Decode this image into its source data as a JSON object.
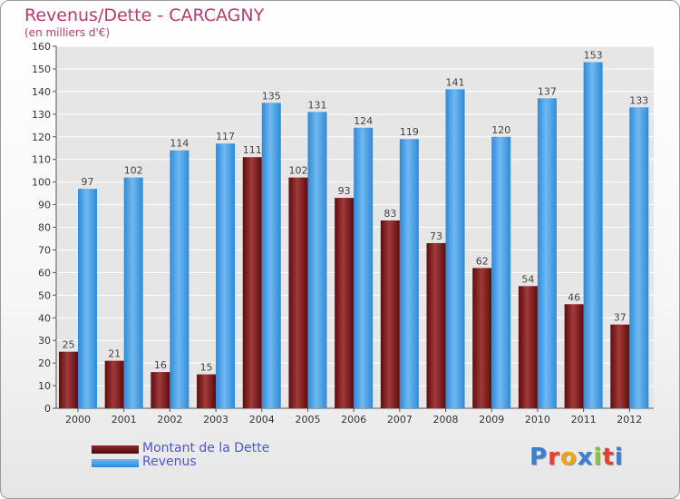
{
  "chart_data": {
    "type": "bar",
    "title": "Revenus/Dette - CARCAGNY",
    "subtitle": "(en milliers d'€)",
    "xlabel": "",
    "ylabel": "",
    "categories": [
      "2000",
      "2001",
      "2002",
      "2003",
      "2004",
      "2005",
      "2006",
      "2007",
      "2008",
      "2009",
      "2010",
      "2011",
      "2012"
    ],
    "series": [
      {
        "name": "Montant de la Dette",
        "color": "#7a1c1c",
        "values": [
          25,
          21,
          16,
          15,
          111,
          102,
          93,
          83,
          73,
          62,
          54,
          46,
          37
        ]
      },
      {
        "name": "Revenus",
        "color": "#3d9ce6",
        "values": [
          97,
          102,
          114,
          117,
          135,
          131,
          124,
          119,
          141,
          120,
          137,
          153,
          133
        ]
      }
    ],
    "ylim": [
      0,
      160
    ],
    "yticks": [
      0,
      10,
      20,
      30,
      40,
      50,
      60,
      70,
      80,
      90,
      100,
      110,
      120,
      130,
      140,
      150,
      160
    ],
    "grid": true,
    "legend_position": "bottom-left",
    "data_labels": true
  },
  "logo": {
    "letters": [
      "P",
      "r",
      "o",
      "x",
      "i",
      "t",
      "i"
    ],
    "colors": [
      "#3a7fd0",
      "#e4432d",
      "#f0a21a",
      "#3a7fd0",
      "#8ac43f",
      "#e4432d",
      "#3a7fd0"
    ]
  }
}
